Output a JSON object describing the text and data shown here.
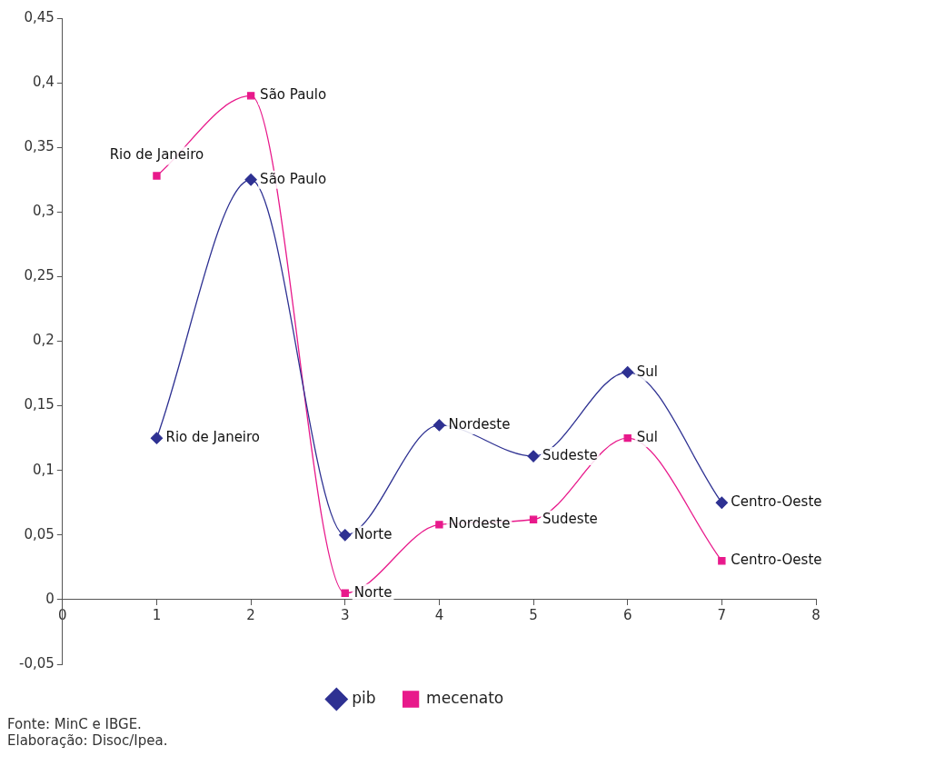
{
  "chart_data": {
    "type": "line",
    "x": [
      1,
      2,
      3,
      4,
      5,
      6,
      7
    ],
    "series": [
      {
        "name": "pib",
        "color": "#2e3192",
        "marker": "diamond",
        "values": [
          0.125,
          0.325,
          0.05,
          0.135,
          0.111,
          0.176,
          0.075
        ]
      },
      {
        "name": "mecenato",
        "color": "#e8198b",
        "marker": "square",
        "values": [
          0.328,
          0.39,
          0.005,
          0.058,
          0.062,
          0.125,
          0.03
        ]
      }
    ],
    "xlim": [
      0,
      8
    ],
    "xticks": [
      0,
      1,
      2,
      3,
      4,
      5,
      6,
      7,
      8
    ],
    "ylim": [
      -0.05,
      0.45
    ],
    "yticks": [
      {
        "value": -0.05,
        "label": "-0,05"
      },
      {
        "value": 0,
        "label": "0"
      },
      {
        "value": 0.05,
        "label": "0,05"
      },
      {
        "value": 0.1,
        "label": "0,1"
      },
      {
        "value": 0.15,
        "label": "0,15"
      },
      {
        "value": 0.2,
        "label": "0,2"
      },
      {
        "value": 0.25,
        "label": "0,25"
      },
      {
        "value": 0.3,
        "label": "0,3"
      },
      {
        "value": 0.35,
        "label": "0,35"
      },
      {
        "value": 0.4,
        "label": "0,4"
      },
      {
        "value": 0.45,
        "label": "0,45"
      }
    ],
    "grid": false,
    "legend": "bottom",
    "line_style": "solid",
    "annotations": [
      {
        "text": "Rio de Janeiro",
        "x": 1,
        "y": 0.125
      },
      {
        "text": "São Paulo",
        "x": 2,
        "y": 0.325
      },
      {
        "text": "Norte",
        "x": 3,
        "y": 0.05
      },
      {
        "text": "Nordeste",
        "x": 4,
        "y": 0.135
      },
      {
        "text": "Sudeste",
        "x": 5,
        "y": 0.111
      },
      {
        "text": "Sul",
        "x": 6,
        "y": 0.176
      },
      {
        "text": "Centro-Oeste",
        "x": 7,
        "y": 0.075
      },
      {
        "text": "Rio de Janeiro",
        "x": 1,
        "y": 0.328
      },
      {
        "text": "São Paulo",
        "x": 2,
        "y": 0.39
      },
      {
        "text": "Norte",
        "x": 3,
        "y": 0.005
      },
      {
        "text": "Nordeste",
        "x": 4,
        "y": 0.058
      },
      {
        "text": "Sudeste",
        "x": 5,
        "y": 0.062
      },
      {
        "text": "Sul",
        "x": 6,
        "y": 0.125
      },
      {
        "text": "Centro-Oeste",
        "x": 7,
        "y": 0.03
      },
      "Fonte: MinC e IBGE.",
      "Elaboração: Disoc/Ipea."
    ]
  }
}
